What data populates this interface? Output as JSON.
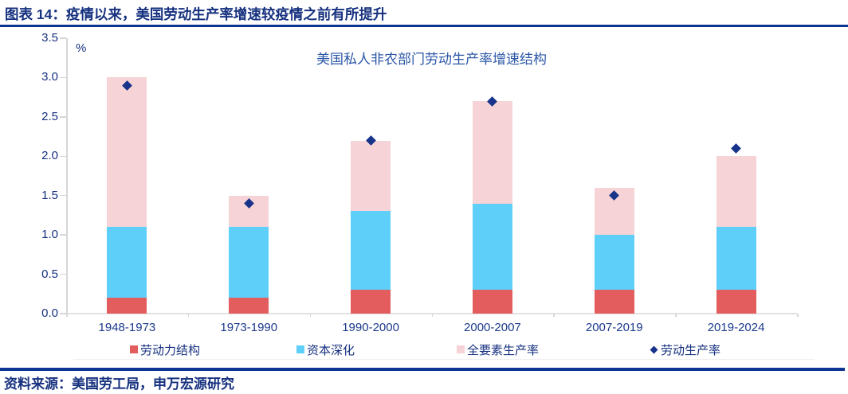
{
  "header": {
    "title": "图表 14：疫情以来，美国劳动生产率增速较疫情之前有所提升"
  },
  "footer": {
    "source": "资料来源：美国劳工局，申万宏源研究"
  },
  "colors": {
    "navy_text": "#16317F",
    "rule_blue": "#0D3692",
    "chart_title_blue": "#2B57A7",
    "labor_structure_red": "#E35D5F",
    "capital_deepening_blue": "#5ECFF9",
    "tfp_pink": "#F5D3D6",
    "productivity_diamond_navy": "#17338A",
    "axis_gray": "#D6D6D6"
  },
  "chart_data": {
    "type": "bar",
    "stacked": true,
    "title": "美国私人非农部门劳动生产率增速结构",
    "unit_label": "%",
    "categories": [
      "1948-1973",
      "1973-1990",
      "1990-2000",
      "2000-2007",
      "2007-2019",
      "2019-2024"
    ],
    "series": [
      {
        "name": "劳动力结构",
        "type": "bar",
        "color": "#E35D5F",
        "values": [
          0.2,
          0.2,
          0.3,
          0.3,
          0.3,
          0.3
        ]
      },
      {
        "name": "资本深化",
        "type": "bar",
        "color": "#5ECFF9",
        "values": [
          0.9,
          0.9,
          1.0,
          1.1,
          0.7,
          0.8
        ]
      },
      {
        "name": "全要素生产率",
        "type": "bar",
        "color": "#F5D3D6",
        "values": [
          1.9,
          0.4,
          0.9,
          1.3,
          0.6,
          0.9
        ]
      },
      {
        "name": "劳动生产率",
        "type": "scatter",
        "marker": "diamond",
        "color": "#17338A",
        "values": [
          2.9,
          1.4,
          2.2,
          2.7,
          1.5,
          2.1
        ]
      }
    ],
    "stack_totals": [
      3.0,
      1.5,
      2.2,
      2.7,
      1.6,
      2.0
    ],
    "ylim": [
      0,
      3.5
    ],
    "ytick_step": 0.5,
    "ytick_labels": [
      "0.0",
      "0.5",
      "1.0",
      "1.5",
      "2.0",
      "2.5",
      "3.0",
      "3.5"
    ],
    "grid": false,
    "legend_position": "bottom"
  }
}
